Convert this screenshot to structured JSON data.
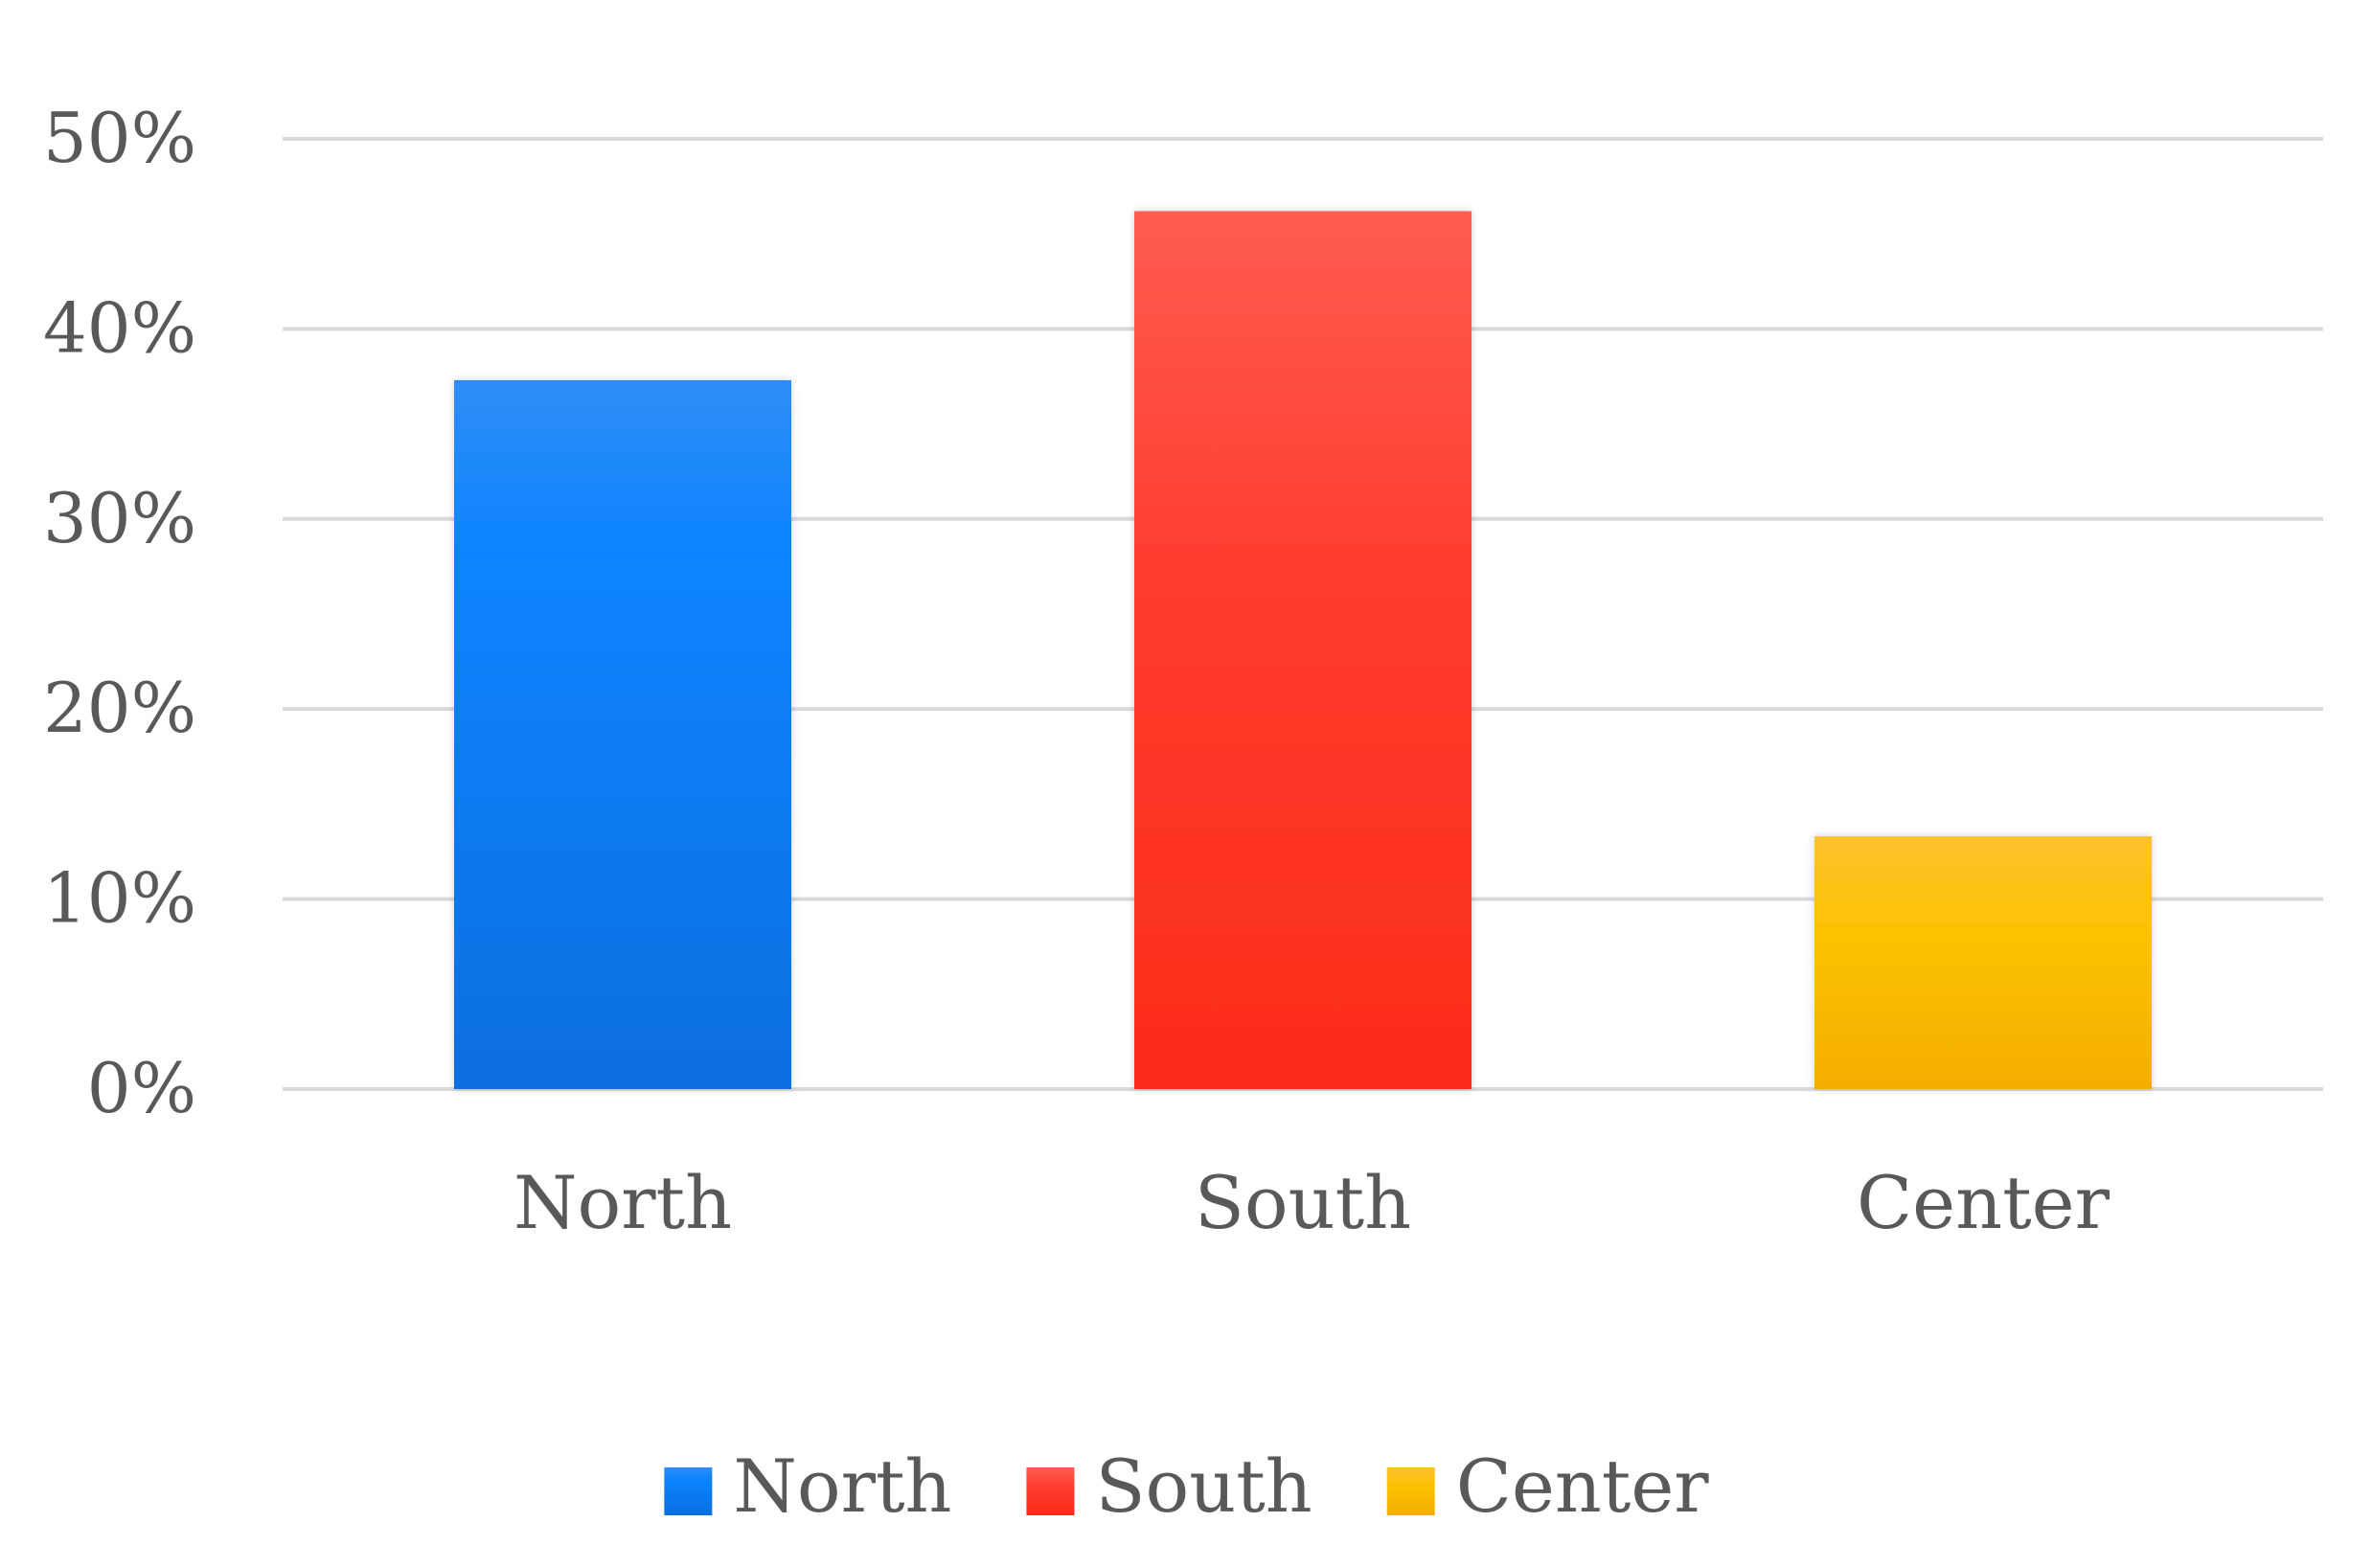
{
  "chart_data": {
    "type": "bar",
    "categories": [
      "North",
      "South",
      "Center"
    ],
    "values": [
      37.3,
      46.2,
      13.3
    ],
    "colors": [
      "#0a7ef0",
      "#fe3a2a",
      "#fdb800"
    ],
    "title": "",
    "xlabel": "",
    "ylabel": "",
    "ylim": [
      0,
      50
    ],
    "yticks": [
      "0%",
      "10%",
      "20%",
      "30%",
      "40%",
      "50%"
    ],
    "grid": true,
    "legend": {
      "placement": "bottom",
      "entries": [
        "North",
        "South",
        "Center"
      ]
    }
  }
}
